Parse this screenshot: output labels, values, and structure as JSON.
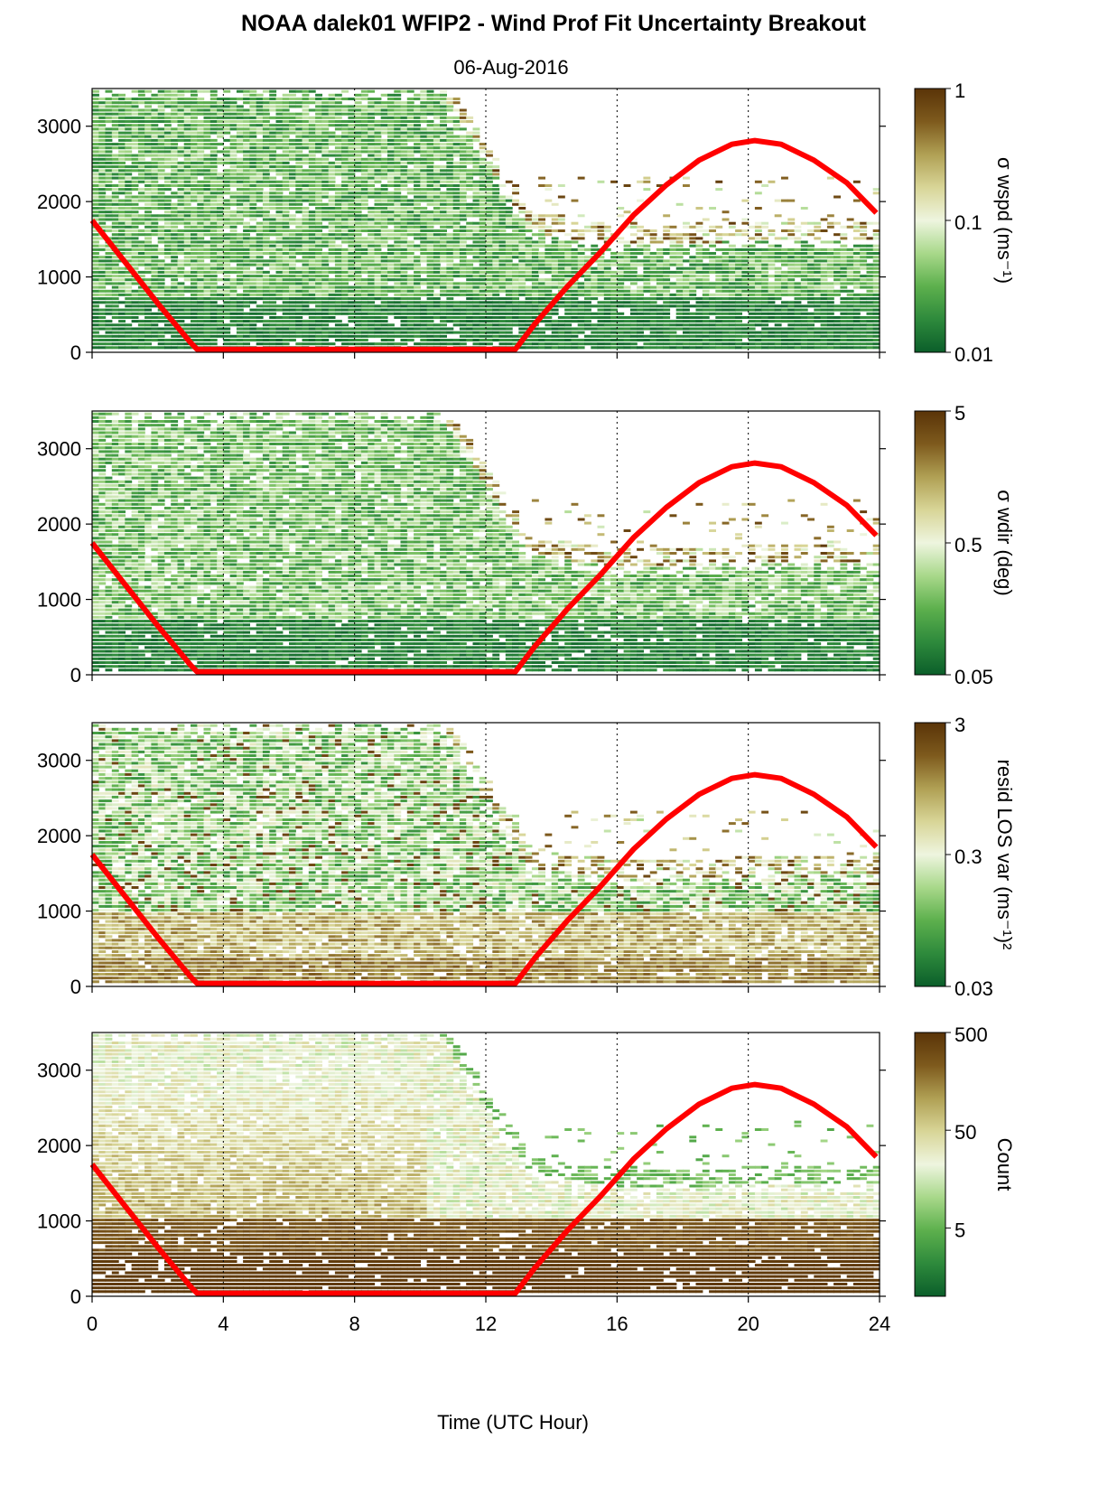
{
  "title": "NOAA dalek01 WFIP2 - Wind Prof Fit Uncertainty Breakout",
  "subtitle": "06-Aug-2016",
  "xlabel": "Time (UTC Hour)",
  "colors": {
    "sun_curve": "#ff0000",
    "colormap": [
      "#0b5e2a",
      "#2e8a3c",
      "#5db04d",
      "#a8d88a",
      "#eef5df",
      "#d8d597",
      "#b0a054",
      "#7e5a1d",
      "#5a3408"
    ]
  },
  "chart_data": [
    {
      "type": "heatmap",
      "name": "sigma-wspd",
      "colorbar_label": "σ wspd (ms⁻¹)",
      "colorbar_scale": "log",
      "colorbar_range": [
        0.01,
        1
      ],
      "colorbar_ticks": [
        "0.01",
        "0.1",
        "1"
      ],
      "xlim": [
        0,
        24
      ],
      "ylim": [
        0,
        3500
      ],
      "xticks": [
        0,
        4,
        8,
        12,
        16,
        20,
        24
      ],
      "yticks": [
        0,
        1000,
        2000,
        3000
      ],
      "vertical_dotted_lines": [
        4,
        8,
        12,
        16,
        20
      ],
      "profile": "wspd"
    },
    {
      "type": "heatmap",
      "name": "sigma-wdir",
      "colorbar_label": "σ wdir (deg)",
      "colorbar_scale": "log",
      "colorbar_range": [
        0.05,
        5
      ],
      "colorbar_ticks": [
        "0.05",
        "0.5",
        "5"
      ],
      "xlim": [
        0,
        24
      ],
      "ylim": [
        0,
        3500
      ],
      "xticks": [
        0,
        4,
        8,
        12,
        16,
        20,
        24
      ],
      "yticks": [
        0,
        1000,
        2000,
        3000
      ],
      "vertical_dotted_lines": [
        4,
        8,
        12,
        16,
        20
      ],
      "profile": "wdir"
    },
    {
      "type": "heatmap",
      "name": "resid-los-var",
      "colorbar_label": "resid LOS var (ms⁻¹)²",
      "colorbar_scale": "log",
      "colorbar_range": [
        0.03,
        3
      ],
      "colorbar_ticks": [
        "0.03",
        "0.3",
        "3"
      ],
      "xlim": [
        0,
        24
      ],
      "ylim": [
        0,
        3500
      ],
      "xticks": [
        0,
        4,
        8,
        12,
        16,
        20,
        24
      ],
      "yticks": [
        0,
        1000,
        2000,
        3000
      ],
      "vertical_dotted_lines": [
        4,
        8,
        12,
        16,
        20
      ],
      "profile": "resid"
    },
    {
      "type": "heatmap",
      "name": "count",
      "colorbar_label": "Count",
      "colorbar_scale": "log",
      "colorbar_range": [
        1,
        500
      ],
      "colorbar_ticks": [
        "5",
        "50",
        "500"
      ],
      "xlim": [
        0,
        24
      ],
      "ylim": [
        0,
        3500
      ],
      "xticks": [
        0,
        4,
        8,
        12,
        16,
        20,
        24
      ],
      "yticks": [
        0,
        1000,
        2000,
        3000
      ],
      "vertical_dotted_lines": [
        4,
        8,
        12,
        16,
        20
      ],
      "profile": "count"
    }
  ],
  "overlay_curve": {
    "type": "line",
    "color": "red",
    "x": [
      0.0,
      1.0,
      2.0,
      3.0,
      3.2,
      12.9,
      13.5,
      14.5,
      15.5,
      16.5,
      17.5,
      18.5,
      19.5,
      20.2,
      21.0,
      22.0,
      23.0,
      23.9
    ],
    "y": [
      1750,
      1200,
      650,
      130,
      40,
      40,
      380,
      880,
      1330,
      1820,
      2220,
      2550,
      2760,
      2810,
      2760,
      2550,
      2250,
      1850
    ]
  }
}
